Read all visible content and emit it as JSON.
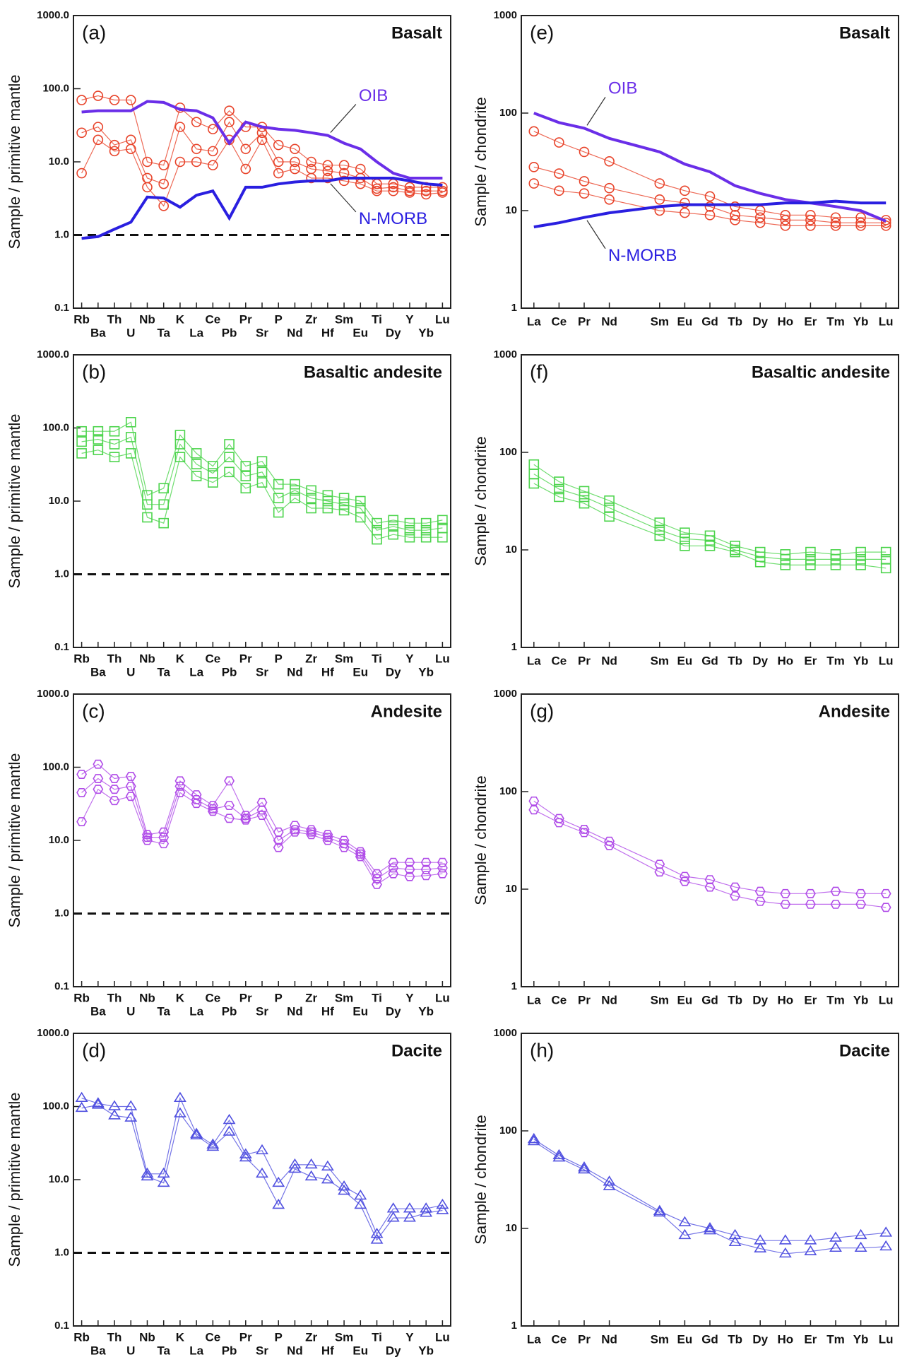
{
  "chart_data": [
    {
      "type": "line",
      "label": "(a)",
      "title": "Basalt",
      "y_label": "Sample / primitive mantle",
      "log": true,
      "marker": "circle",
      "categories": [
        "Rb",
        "Ba",
        "Th",
        "U",
        "Nb",
        "Ta",
        "K",
        "La",
        "Ce",
        "Pb",
        "Pr",
        "Sr",
        "P",
        "Nd",
        "Zr",
        "Hf",
        "Sm",
        "Eu",
        "Ti",
        "Dy",
        "Y",
        "Yb",
        "Lu"
      ],
      "ylim": [
        0.1,
        1000
      ],
      "yticks": [
        0.1,
        {
          "value": 1,
          "label": "1.0"
        },
        {
          "value": 10,
          "label": "10.0"
        },
        {
          "value": 100,
          "label": "100.0"
        },
        {
          "value": 1000,
          "label": "1000.0"
        }
      ],
      "hline": 1,
      "series": [
        {
          "color": "#e8432a",
          "values": [
            70,
            80,
            70,
            70,
            10,
            9,
            55,
            35,
            28,
            50,
            30,
            30,
            17,
            15,
            10,
            9,
            9,
            8,
            5,
            5,
            4.5,
            4.5,
            4.5
          ]
        },
        {
          "color": "#e8432a",
          "values": [
            25,
            30,
            17,
            20,
            6,
            5,
            30,
            15,
            14,
            35,
            15,
            25,
            10,
            10,
            8,
            7.5,
            7,
            6,
            4.3,
            4.5,
            4,
            4,
            4
          ]
        },
        {
          "color": "#e8432a",
          "values": [
            7,
            20,
            14,
            15,
            4.5,
            2.5,
            10,
            10,
            9,
            20,
            8,
            20,
            7,
            8,
            6,
            6,
            5.5,
            5,
            4,
            4,
            3.8,
            3.6,
            3.8
          ]
        },
        {
          "name": "OIB",
          "color": "#6a2ee8",
          "values": [
            48,
            50,
            50,
            50,
            67,
            65,
            52,
            50,
            40,
            18,
            35,
            30,
            28,
            27,
            25,
            23,
            18,
            15,
            10,
            7,
            6,
            6,
            6
          ]
        },
        {
          "name": "N-MORB",
          "color": "#2a1fe0",
          "values": [
            0.9,
            0.95,
            1.2,
            1.5,
            3.3,
            3.2,
            2.4,
            3.5,
            4,
            1.7,
            4.5,
            4.5,
            5,
            5.3,
            5.5,
            5.5,
            6,
            6,
            6,
            6,
            5.5,
            5,
            4.8
          ]
        }
      ]
    },
    {
      "type": "line",
      "label": "(b)",
      "title": "Basaltic andesite",
      "y_label": "Sample / primitive mantle",
      "log": true,
      "marker": "square",
      "categories": [
        "Rb",
        "Ba",
        "Th",
        "U",
        "Nb",
        "Ta",
        "K",
        "La",
        "Ce",
        "Pb",
        "Pr",
        "Sr",
        "P",
        "Nd",
        "Zr",
        "Hf",
        "Sm",
        "Eu",
        "Ti",
        "Dy",
        "Y",
        "Yb",
        "Lu"
      ],
      "ylim": [
        0.1,
        1000
      ],
      "yticks": [
        0.1,
        {
          "value": 1,
          "label": "1.0"
        },
        {
          "value": 10,
          "label": "10.0"
        },
        {
          "value": 100,
          "label": "100.0"
        },
        {
          "value": 1000,
          "label": "1000.0"
        }
      ],
      "hline": 1,
      "series": [
        {
          "color": "#4cd44c",
          "values": [
            90,
            90,
            90,
            120,
            12,
            15,
            80,
            45,
            30,
            60,
            30,
            35,
            17,
            17,
            14,
            12,
            11,
            10,
            5,
            5.5,
            5,
            5,
            5.5
          ]
        },
        {
          "color": "#4cd44c",
          "values": [
            65,
            70,
            60,
            75,
            9,
            9,
            60,
            32,
            24,
            40,
            22,
            25,
            11,
            14,
            11,
            10,
            9,
            8,
            4,
            4.5,
            4,
            4,
            4.3
          ]
        },
        {
          "color": "#4cd44c",
          "values": [
            45,
            50,
            40,
            45,
            6,
            5,
            40,
            22,
            18,
            25,
            15,
            18,
            7,
            11,
            8,
            8,
            7.5,
            6,
            3,
            3.5,
            3.2,
            3.2,
            3.2
          ]
        }
      ]
    },
    {
      "type": "line",
      "label": "(c)",
      "title": "Andesite",
      "y_label": "Sample / primitive mantle",
      "log": true,
      "marker": "hexagon",
      "categories": [
        "Rb",
        "Ba",
        "Th",
        "U",
        "Nb",
        "Ta",
        "K",
        "La",
        "Ce",
        "Pb",
        "Pr",
        "Sr",
        "P",
        "Nd",
        "Zr",
        "Hf",
        "Sm",
        "Eu",
        "Ti",
        "Dy",
        "Y",
        "Yb",
        "Lu"
      ],
      "ylim": [
        0.1,
        1000
      ],
      "yticks": [
        0.1,
        {
          "value": 1,
          "label": "1.0"
        },
        {
          "value": 10,
          "label": "10.0"
        },
        {
          "value": 100,
          "label": "100.0"
        },
        {
          "value": 1000,
          "label": "1000.0"
        }
      ],
      "hline": 1,
      "series": [
        {
          "color": "#b04ce8",
          "values": [
            80,
            110,
            70,
            75,
            12,
            13,
            65,
            42,
            30,
            65,
            22,
            33,
            13,
            16,
            14,
            12,
            10,
            7,
            3.5,
            5,
            5,
            5,
            5
          ]
        },
        {
          "color": "#b04ce8",
          "values": [
            45,
            70,
            50,
            55,
            11,
            11,
            55,
            36,
            27,
            30,
            20,
            26,
            10,
            14,
            13,
            11,
            9,
            6.5,
            3,
            4.2,
            4,
            4,
            4.2
          ]
        },
        {
          "color": "#b04ce8",
          "values": [
            18,
            50,
            35,
            40,
            10,
            9,
            45,
            32,
            25,
            20,
            19,
            22,
            8,
            13,
            12,
            10,
            8,
            6,
            2.5,
            3.5,
            3.2,
            3.3,
            3.5
          ]
        }
      ]
    },
    {
      "type": "line",
      "label": "(d)",
      "title": "Dacite",
      "y_label": "Sample / primitive mantle",
      "log": true,
      "marker": "triangle",
      "categories": [
        "Rb",
        "Ba",
        "Th",
        "U",
        "Nb",
        "Ta",
        "K",
        "La",
        "Ce",
        "Pb",
        "Pr",
        "Sr",
        "P",
        "Nd",
        "Zr",
        "Hf",
        "Sm",
        "Eu",
        "Ti",
        "Dy",
        "Y",
        "Yb",
        "Lu"
      ],
      "ylim": [
        0.1,
        1000
      ],
      "yticks": [
        0.1,
        {
          "value": 1,
          "label": "1.0"
        },
        {
          "value": 10,
          "label": "10.0"
        },
        {
          "value": 100,
          "label": "100.0"
        },
        {
          "value": 1000,
          "label": "1000.0"
        }
      ],
      "hline": 1,
      "series": [
        {
          "color": "#5050e0",
          "values": [
            130,
            110,
            100,
            100,
            12,
            12,
            130,
            42,
            30,
            65,
            22,
            25,
            9,
            16,
            16,
            15,
            8,
            6,
            1.8,
            4,
            4,
            4,
            4.5
          ]
        },
        {
          "color": "#5050e0",
          "values": [
            95,
            105,
            75,
            70,
            11,
            9,
            80,
            40,
            28,
            45,
            20,
            12,
            4.5,
            14,
            11,
            10,
            7,
            4.5,
            1.5,
            3,
            3,
            3.5,
            3.8
          ]
        }
      ]
    },
    {
      "type": "line",
      "label": "(e)",
      "title": "Basalt",
      "y_label": "Sample / chondrite",
      "log": true,
      "marker": "circle",
      "x": [
        1,
        2,
        3,
        4,
        6,
        7,
        8,
        9,
        10,
        11,
        12,
        13,
        14,
        15
      ],
      "xlim": [
        0.5,
        15.5
      ],
      "xticks": [
        {
          "value": 1,
          "label": "La"
        },
        {
          "value": 2,
          "label": "Ce"
        },
        {
          "value": 3,
          "label": "Pr"
        },
        {
          "value": 4,
          "label": "Nd"
        },
        {
          "value": 6,
          "label": "Sm"
        },
        {
          "value": 7,
          "label": "Eu"
        },
        {
          "value": 8,
          "label": "Gd"
        },
        {
          "value": 9,
          "label": "Tb"
        },
        {
          "value": 10,
          "label": "Dy"
        },
        {
          "value": 11,
          "label": "Ho"
        },
        {
          "value": 12,
          "label": "Er"
        },
        {
          "value": 13,
          "label": "Tm"
        },
        {
          "value": 14,
          "label": "Yb"
        },
        {
          "value": 15,
          "label": "Lu"
        }
      ],
      "ylim": [
        1,
        1000
      ],
      "yticks": [
        1,
        10,
        100,
        1000
      ],
      "series": [
        {
          "color": "#e8432a",
          "values": [
            65,
            50,
            40,
            32,
            19,
            16,
            14,
            11,
            10,
            9,
            9,
            8.5,
            8.5,
            8
          ]
        },
        {
          "color": "#e8432a",
          "values": [
            28,
            24,
            20,
            17,
            13,
            12,
            11,
            9,
            8.5,
            8,
            8,
            7.5,
            7.5,
            7.5
          ]
        },
        {
          "color": "#e8432a",
          "values": [
            19,
            16,
            15,
            13,
            10,
            9.5,
            9,
            8,
            7.5,
            7,
            7,
            7,
            7,
            7
          ]
        },
        {
          "name": "OIB",
          "color": "#6a2ee8",
          "values": [
            100,
            80,
            70,
            55,
            40,
            30,
            25,
            18,
            15,
            13,
            12,
            11,
            10,
            7.8
          ]
        },
        {
          "name": "N-MORB",
          "color": "#2a1fe0",
          "values": [
            6.8,
            7.5,
            8.5,
            9.5,
            11,
            11.5,
            11.5,
            11.5,
            11.5,
            12,
            12,
            12.5,
            12,
            12
          ]
        }
      ]
    },
    {
      "type": "line",
      "label": "(f)",
      "title": "Basaltic andesite",
      "y_label": "Sample / chondrite",
      "log": true,
      "marker": "square",
      "x": [
        1,
        2,
        3,
        4,
        6,
        7,
        8,
        9,
        10,
        11,
        12,
        13,
        14,
        15
      ],
      "xlim": [
        0.5,
        15.5
      ],
      "xticks": [
        {
          "value": 1,
          "label": "La"
        },
        {
          "value": 2,
          "label": "Ce"
        },
        {
          "value": 3,
          "label": "Pr"
        },
        {
          "value": 4,
          "label": "Nd"
        },
        {
          "value": 6,
          "label": "Sm"
        },
        {
          "value": 7,
          "label": "Eu"
        },
        {
          "value": 8,
          "label": "Gd"
        },
        {
          "value": 9,
          "label": "Tb"
        },
        {
          "value": 10,
          "label": "Dy"
        },
        {
          "value": 11,
          "label": "Ho"
        },
        {
          "value": 12,
          "label": "Er"
        },
        {
          "value": 13,
          "label": "Tm"
        },
        {
          "value": 14,
          "label": "Yb"
        },
        {
          "value": 15,
          "label": "Lu"
        }
      ],
      "ylim": [
        1,
        1000
      ],
      "yticks": [
        1,
        10,
        100,
        1000
      ],
      "series": [
        {
          "color": "#4cd44c",
          "values": [
            75,
            50,
            40,
            32,
            19,
            15,
            14,
            11,
            9.5,
            9,
            9.5,
            9,
            9.5,
            9.5
          ]
        },
        {
          "color": "#4cd44c",
          "values": [
            60,
            42,
            35,
            27,
            16,
            13,
            12.5,
            10,
            8.5,
            8,
            8,
            8,
            8,
            8
          ]
        },
        {
          "color": "#4cd44c",
          "values": [
            48,
            35,
            30,
            22,
            14,
            11,
            11,
            9.5,
            7.5,
            7,
            7,
            7,
            7,
            6.5
          ]
        }
      ]
    },
    {
      "type": "line",
      "label": "(g)",
      "title": "Andesite",
      "y_label": "Sample / chondrite",
      "log": true,
      "marker": "hexagon",
      "x": [
        1,
        2,
        3,
        4,
        6,
        7,
        8,
        9,
        10,
        11,
        12,
        13,
        14,
        15
      ],
      "xlim": [
        0.5,
        15.5
      ],
      "xticks": [
        {
          "value": 1,
          "label": "La"
        },
        {
          "value": 2,
          "label": "Ce"
        },
        {
          "value": 3,
          "label": "Pr"
        },
        {
          "value": 4,
          "label": "Nd"
        },
        {
          "value": 6,
          "label": "Sm"
        },
        {
          "value": 7,
          "label": "Eu"
        },
        {
          "value": 8,
          "label": "Gd"
        },
        {
          "value": 9,
          "label": "Tb"
        },
        {
          "value": 10,
          "label": "Dy"
        },
        {
          "value": 11,
          "label": "Ho"
        },
        {
          "value": 12,
          "label": "Er"
        },
        {
          "value": 13,
          "label": "Tm"
        },
        {
          "value": 14,
          "label": "Yb"
        },
        {
          "value": 15,
          "label": "Lu"
        }
      ],
      "ylim": [
        1,
        1000
      ],
      "yticks": [
        1,
        10,
        100,
        1000
      ],
      "series": [
        {
          "color": "#b04ce8",
          "values": [
            80,
            53,
            41,
            31,
            18,
            13.5,
            12.5,
            10.5,
            9.5,
            9,
            9,
            9.5,
            9,
            9
          ]
        },
        {
          "color": "#b04ce8",
          "values": [
            65,
            48,
            38,
            28,
            15,
            12,
            10.5,
            8.5,
            7.5,
            7,
            7,
            7,
            7,
            6.5
          ]
        }
      ]
    },
    {
      "type": "line",
      "label": "(h)",
      "title": "Dacite",
      "y_label": "Sample / chondrite",
      "log": true,
      "marker": "triangle",
      "x": [
        1,
        2,
        3,
        4,
        6,
        7,
        8,
        9,
        10,
        11,
        12,
        13,
        14,
        15
      ],
      "xlim": [
        0.5,
        15.5
      ],
      "xticks": [
        {
          "value": 1,
          "label": "La"
        },
        {
          "value": 2,
          "label": "Ce"
        },
        {
          "value": 3,
          "label": "Pr"
        },
        {
          "value": 4,
          "label": "Nd"
        },
        {
          "value": 6,
          "label": "Sm"
        },
        {
          "value": 7,
          "label": "Eu"
        },
        {
          "value": 8,
          "label": "Gd"
        },
        {
          "value": 9,
          "label": "Tb"
        },
        {
          "value": 10,
          "label": "Dy"
        },
        {
          "value": 11,
          "label": "Ho"
        },
        {
          "value": 12,
          "label": "Er"
        },
        {
          "value": 13,
          "label": "Tm"
        },
        {
          "value": 14,
          "label": "Yb"
        },
        {
          "value": 15,
          "label": "Lu"
        }
      ],
      "ylim": [
        1,
        1000
      ],
      "yticks": [
        1,
        10,
        100,
        1000
      ],
      "series": [
        {
          "color": "#5050e0",
          "values": [
            82,
            56,
            42,
            30,
            15,
            11.5,
            10,
            8.5,
            7.5,
            7.5,
            7.5,
            8,
            8.5,
            9
          ]
        },
        {
          "color": "#5050e0",
          "values": [
            78,
            53,
            40,
            27,
            14.5,
            8.5,
            9.5,
            7.2,
            6.2,
            5.5,
            5.8,
            6.3,
            6.3,
            6.5
          ]
        }
      ]
    }
  ]
}
